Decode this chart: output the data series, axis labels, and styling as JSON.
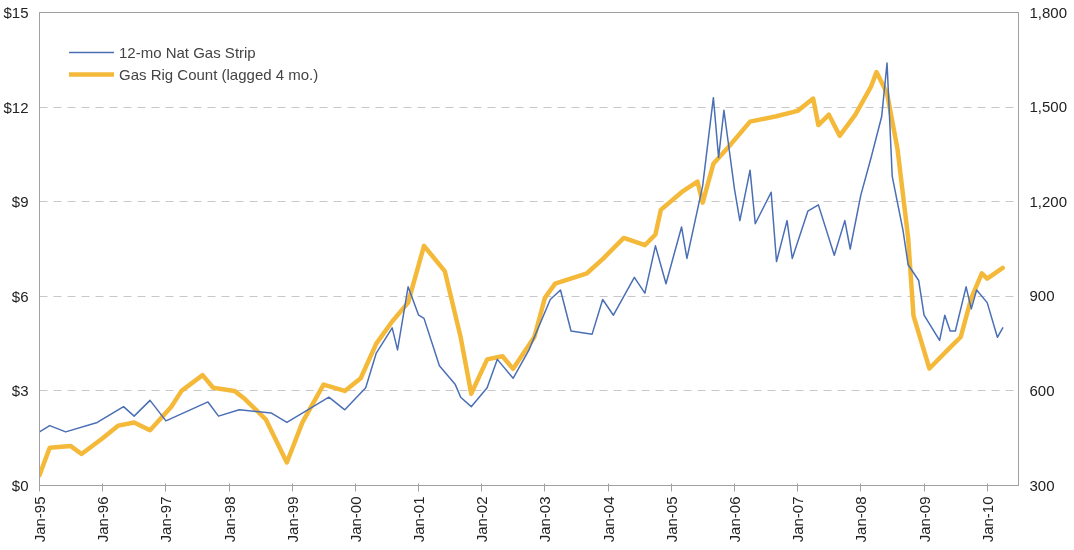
{
  "chart_data": {
    "type": "line",
    "xlim": [
      "1995-01",
      "2010-07"
    ],
    "xticks": [
      {
        "value": "1995-01",
        "label": "Jan-95"
      },
      {
        "value": "1996-01",
        "label": "Jan-96"
      },
      {
        "value": "1997-01",
        "label": "Jan-97"
      },
      {
        "value": "1998-01",
        "label": "Jan-98"
      },
      {
        "value": "1999-01",
        "label": "Jan-99"
      },
      {
        "value": "2000-01",
        "label": "Jan-00"
      },
      {
        "value": "2001-01",
        "label": "Jan-01"
      },
      {
        "value": "2002-01",
        "label": "Jan-02"
      },
      {
        "value": "2003-01",
        "label": "Jan-03"
      },
      {
        "value": "2004-01",
        "label": "Jan-04"
      },
      {
        "value": "2005-01",
        "label": "Jan-05"
      },
      {
        "value": "2006-01",
        "label": "Jan-06"
      },
      {
        "value": "2007-01",
        "label": "Jan-07"
      },
      {
        "value": "2008-01",
        "label": "Jan-08"
      },
      {
        "value": "2009-01",
        "label": "Jan-09"
      },
      {
        "value": "2010-01",
        "label": "Jan-10"
      }
    ],
    "ylim": [
      0,
      15
    ],
    "yticks": [
      {
        "value": 0,
        "label": "$0"
      },
      {
        "value": 3,
        "label": "$3"
      },
      {
        "value": 6,
        "label": "$6"
      },
      {
        "value": 9,
        "label": "$9"
      },
      {
        "value": 12,
        "label": "$12"
      },
      {
        "value": 15,
        "label": "$15"
      }
    ],
    "y2lim": [
      300,
      1800
    ],
    "y2ticks": [
      300,
      600,
      900,
      {
        "value": 1200,
        "label": "1,200"
      },
      {
        "value": 1500,
        "label": "1,500"
      },
      {
        "value": 1800,
        "label": "1,800"
      }
    ],
    "grid": "y",
    "legend": "top left",
    "marker": "none",
    "series": [
      {
        "name": "12-mo Nat Gas Strip",
        "color": "#4a6fb5",
        "x": [
          "1995-01",
          "1995-03",
          "1995-06",
          "1995-12",
          "1996-05",
          "1996-07",
          "1996-10",
          "1997-01",
          "1997-09",
          "1997-11",
          "1998-03",
          "1998-09",
          "1998-12",
          "1999-04",
          "1999-08",
          "1999-11",
          "2000-03",
          "2000-05",
          "2000-08",
          "2000-09",
          "2000-11",
          "2001-01",
          "2001-02",
          "2001-05",
          "2001-08",
          "2001-09",
          "2001-11",
          "2002-02",
          "2002-04",
          "2002-07",
          "2002-10",
          "2003-02",
          "2003-04",
          "2003-06",
          "2003-10",
          "2003-12",
          "2004-02",
          "2004-06",
          "2004-08",
          "2004-10",
          "2004-12",
          "2005-03",
          "2005-04",
          "2005-07",
          "2005-09",
          "2005-10",
          "2005-11",
          "2006-01",
          "2006-02",
          "2006-04",
          "2006-05",
          "2006-08",
          "2006-09",
          "2006-11",
          "2006-12",
          "2007-03",
          "2007-05",
          "2007-08",
          "2007-10",
          "2007-11",
          "2008-01",
          "2008-03",
          "2008-05",
          "2008-06",
          "2008-07",
          "2008-09",
          "2008-10",
          "2008-12",
          "2009-01",
          "2009-04",
          "2009-05",
          "2009-06",
          "2009-07",
          "2009-09",
          "2009-10",
          "2009-11",
          "2010-01",
          "2010-03",
          "2010-04"
        ],
        "values": [
          1.7,
          1.9,
          1.7,
          2.0,
          2.5,
          2.2,
          2.7,
          2.05,
          2.65,
          2.2,
          2.4,
          2.3,
          2.0,
          2.4,
          2.8,
          2.4,
          3.1,
          4.2,
          5.0,
          4.3,
          6.3,
          5.4,
          5.3,
          3.8,
          3.2,
          2.8,
          2.5,
          3.1,
          4.0,
          3.4,
          4.3,
          5.9,
          6.2,
          4.9,
          4.8,
          5.9,
          5.4,
          6.6,
          6.1,
          7.6,
          6.4,
          8.2,
          7.2,
          9.5,
          12.3,
          10.4,
          11.9,
          9.4,
          8.4,
          10.0,
          8.3,
          9.3,
          7.1,
          8.4,
          7.2,
          8.7,
          8.9,
          7.3,
          8.4,
          7.5,
          9.2,
          10.4,
          11.7,
          13.4,
          9.8,
          8.1,
          7.0,
          6.5,
          5.4,
          4.6,
          5.4,
          4.9,
          4.9,
          6.3,
          5.6,
          6.2,
          5.8,
          4.7,
          5.0
        ]
      },
      {
        "name": "Gas Rig Count (lagged 4 mo.)",
        "color": "#f5b93a",
        "axis": "y2",
        "x": [
          "1995-01",
          "1995-03",
          "1995-07",
          "1995-09",
          "1996-01",
          "1996-04",
          "1996-07",
          "1996-10",
          "1997-02",
          "1997-04",
          "1997-08",
          "1997-10",
          "1998-02",
          "1998-04",
          "1998-08",
          "1998-12",
          "1999-03",
          "1999-07",
          "1999-11",
          "2000-02",
          "2000-05",
          "2000-08",
          "2000-11",
          "2001-02",
          "2001-06",
          "2001-09",
          "2001-11",
          "2002-02",
          "2002-05",
          "2002-07",
          "2002-11",
          "2003-01",
          "2003-03",
          "2003-09",
          "2003-12",
          "2004-04",
          "2004-08",
          "2004-10",
          "2004-11",
          "2005-03",
          "2005-06",
          "2005-07",
          "2005-09",
          "2005-12",
          "2006-04",
          "2006-09",
          "2007-01",
          "2007-04",
          "2007-05",
          "2007-07",
          "2007-09",
          "2007-12",
          "2008-03",
          "2008-04",
          "2008-06",
          "2008-08",
          "2008-10",
          "2008-11",
          "2009-02",
          "2009-06",
          "2009-08",
          "2009-10",
          "2009-12",
          "2010-01",
          "2010-04"
        ],
        "values": [
          333,
          420,
          425,
          400,
          450,
          490,
          500,
          475,
          550,
          600,
          650,
          610,
          600,
          575,
          510,
          373,
          500,
          620,
          600,
          640,
          750,
          820,
          880,
          1060,
          980,
          770,
          591,
          700,
          710,
          670,
          771,
          895,
          940,
          973,
          1018,
          1085,
          1062,
          1096,
          1174,
          1230,
          1264,
          1197,
          1320,
          1376,
          1454,
          1471,
          1488,
          1527,
          1443,
          1476,
          1409,
          1476,
          1566,
          1611,
          1544,
          1365,
          1085,
          838,
          671,
          738,
          771,
          894,
          973,
          956,
          990
        ]
      }
    ]
  }
}
